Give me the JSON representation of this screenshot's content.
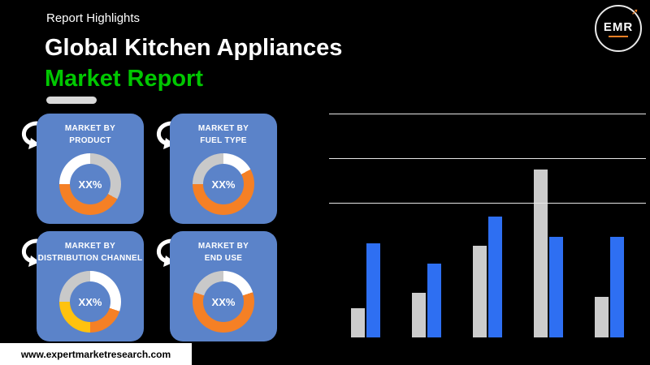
{
  "header": {
    "eyebrow": "Report Highlights",
    "title_line1": "Global Kitchen Appliances",
    "title_line2": "Market Report",
    "accent_color": "#00c800"
  },
  "logo": {
    "text": "EMR"
  },
  "boxes": [
    {
      "title_line1": "MARKET BY",
      "title_line2": "PRODUCT",
      "value": "XX%",
      "donut": {
        "segments": [
          {
            "color": "#c9c9c9",
            "pct": 33
          },
          {
            "color": "#f58025",
            "pct": 42
          },
          {
            "color": "#ffffff",
            "pct": 25
          }
        ]
      }
    },
    {
      "title_line1": "MARKET BY",
      "title_line2": "FUEL TYPE",
      "value": "XX%",
      "donut": {
        "segments": [
          {
            "color": "#ffffff",
            "pct": 17
          },
          {
            "color": "#f58025",
            "pct": 58
          },
          {
            "color": "#c9c9c9",
            "pct": 25
          }
        ]
      }
    },
    {
      "title_line1": "MARKET BY",
      "title_line2": "DISTRIBUTION CHANNEL",
      "value": "XX%",
      "donut": {
        "segments": [
          {
            "color": "#ffffff",
            "pct": 30
          },
          {
            "color": "#f58025",
            "pct": 20
          },
          {
            "color": "#ffc20e",
            "pct": 25
          },
          {
            "color": "#c9c9c9",
            "pct": 25
          }
        ]
      }
    },
    {
      "title_line1": "MARKET BY",
      "title_line2": "END USE",
      "value": "XX%",
      "donut": {
        "segments": [
          {
            "color": "#ffffff",
            "pct": 20
          },
          {
            "color": "#f58025",
            "pct": 60
          },
          {
            "color": "#c9c9c9",
            "pct": 20
          }
        ]
      }
    }
  ],
  "chart_data": {
    "type": "bar",
    "title": "",
    "xlabel": "",
    "ylabel": "",
    "categories": [
      "",
      "",
      "",
      "",
      ""
    ],
    "series": [
      {
        "name": "series-gray",
        "color": "#cccccc",
        "values": [
          13,
          20,
          41,
          75,
          18
        ]
      },
      {
        "name": "series-blue",
        "color": "#2e6ff2",
        "values": [
          42,
          33,
          54,
          45,
          45
        ]
      }
    ],
    "ylim": [
      0,
      100
    ],
    "grid": true,
    "gridlines": [
      60,
      80,
      100
    ],
    "legend": "none"
  },
  "footer": {
    "url": "www.expertmarketresearch.com"
  }
}
